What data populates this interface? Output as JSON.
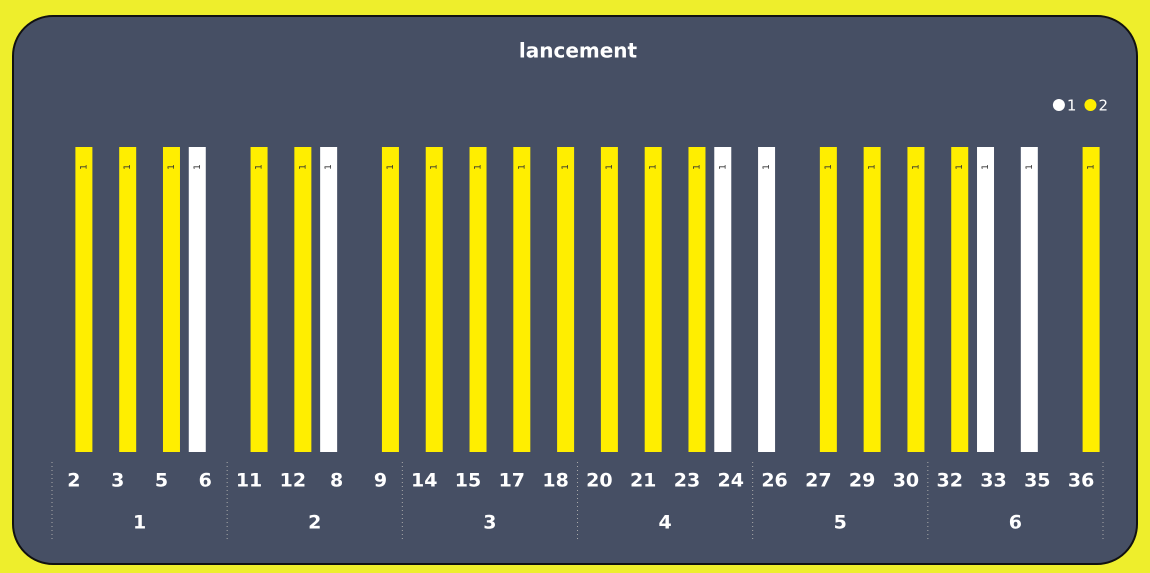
{
  "chart_data": {
    "type": "bar",
    "title": "lancement",
    "groups": [
      {
        "label": "1",
        "categories": [
          "2",
          "3",
          "5",
          "6"
        ]
      },
      {
        "label": "2",
        "categories": [
          "11",
          "12",
          "8",
          "9"
        ]
      },
      {
        "label": "3",
        "categories": [
          "14",
          "15",
          "17",
          "18"
        ]
      },
      {
        "label": "4",
        "categories": [
          "20",
          "21",
          "23",
          "24"
        ]
      },
      {
        "label": "5",
        "categories": [
          "26",
          "27",
          "29",
          "30"
        ]
      },
      {
        "label": "6",
        "categories": [
          "32",
          "33",
          "35",
          "36"
        ]
      }
    ],
    "series": [
      {
        "name": "1",
        "color": "#ffffff",
        "values": [
          null,
          null,
          null,
          1,
          null,
          null,
          1,
          null,
          null,
          null,
          null,
          null,
          null,
          null,
          null,
          1,
          1,
          null,
          null,
          null,
          null,
          1,
          1,
          null
        ]
      },
      {
        "name": "2",
        "color": "#ffee00",
        "values": [
          1,
          1,
          1,
          null,
          1,
          1,
          null,
          1,
          1,
          1,
          1,
          1,
          1,
          1,
          1,
          null,
          null,
          1,
          1,
          1,
          1,
          null,
          null,
          1
        ]
      }
    ],
    "ylim": [
      0,
      1
    ],
    "legend": "top-right"
  }
}
